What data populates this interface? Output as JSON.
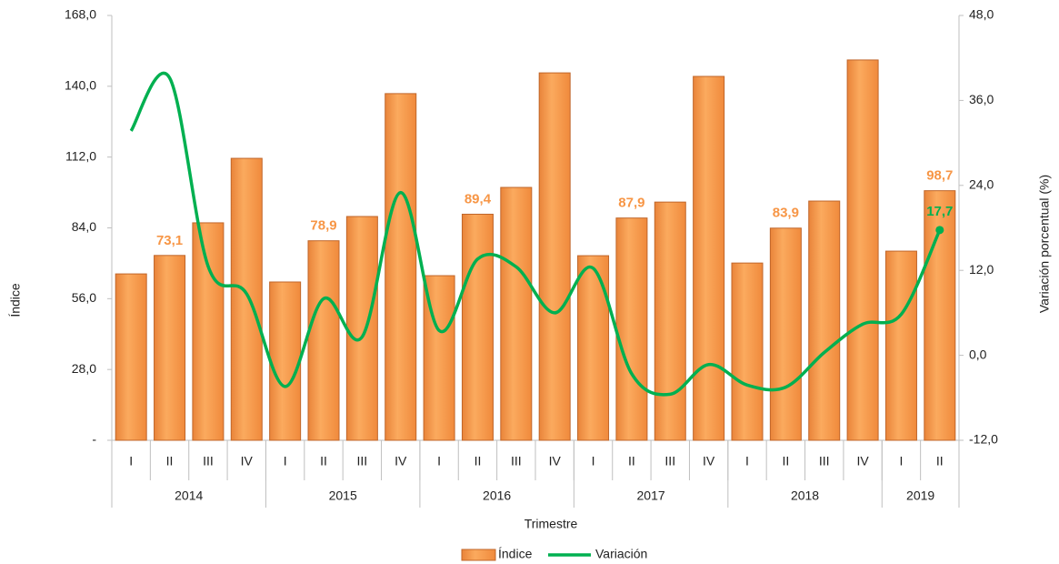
{
  "chart_data": {
    "type": "bar",
    "x_label": "Trimestre",
    "y_label": "Índice",
    "y2_label": "Variación porcentual (%)",
    "categories": [
      "I",
      "II",
      "III",
      "IV",
      "I",
      "II",
      "III",
      "IV",
      "I",
      "II",
      "III",
      "IV",
      "I",
      "II",
      "III",
      "IV",
      "I",
      "II",
      "III",
      "IV",
      "I",
      "II"
    ],
    "groups": [
      {
        "name": "2014",
        "size": 4
      },
      {
        "name": "2015",
        "size": 4
      },
      {
        "name": "2016",
        "size": 4
      },
      {
        "name": "2017",
        "size": 4
      },
      {
        "name": "2018",
        "size": 4
      },
      {
        "name": "2019",
        "size": 2
      }
    ],
    "series": [
      {
        "name": "Índice",
        "type": "bar",
        "color": "#f79646",
        "values": [
          65.8,
          73.1,
          86.0,
          111.5,
          62.6,
          78.9,
          88.5,
          137.1,
          65.1,
          89.4,
          100.0,
          145.3,
          73.0,
          87.9,
          94.2,
          143.9,
          70.1,
          83.9,
          94.6,
          150.4,
          74.8,
          98.7
        ],
        "value_labels": [
          null,
          "73,1",
          null,
          null,
          null,
          "78,9",
          null,
          null,
          null,
          "89,4",
          null,
          null,
          null,
          "87,9",
          null,
          null,
          null,
          "83,9",
          null,
          null,
          null,
          "98,7"
        ]
      },
      {
        "name": "Variación",
        "type": "line",
        "axis": "y2",
        "color": "#00b050",
        "values": [
          31.7,
          39.2,
          12.6,
          8.7,
          -4.4,
          8.0,
          2.6,
          23.0,
          3.5,
          13.6,
          12.5,
          6.0,
          12.3,
          -2.6,
          -5.5,
          -1.3,
          -4.2,
          -4.5,
          0.4,
          4.4,
          5.8,
          17.7
        ],
        "value_labels": [
          null,
          null,
          null,
          null,
          null,
          null,
          null,
          null,
          null,
          null,
          null,
          null,
          null,
          null,
          null,
          null,
          null,
          null,
          null,
          null,
          null,
          "17,7"
        ]
      }
    ],
    "ylim": [
      0,
      168
    ],
    "yticks": [
      {
        "value": 0,
        "label": "-"
      },
      {
        "value": 28,
        "label": "28,0"
      },
      {
        "value": 56,
        "label": "56,0"
      },
      {
        "value": 84,
        "label": "84,0"
      },
      {
        "value": 112,
        "label": "112,0"
      },
      {
        "value": 140,
        "label": "140,0"
      },
      {
        "value": 168,
        "label": "168,0"
      }
    ],
    "y2lim": [
      -12,
      48
    ],
    "y2ticks": [
      {
        "value": -12,
        "label": "-12,0"
      },
      {
        "value": 0,
        "label": "0,0"
      },
      {
        "value": 12,
        "label": "12,0"
      },
      {
        "value": 24,
        "label": "24,0"
      },
      {
        "value": 36,
        "label": "36,0"
      },
      {
        "value": 48,
        "label": "48,0"
      }
    ],
    "legend": "bottom"
  }
}
